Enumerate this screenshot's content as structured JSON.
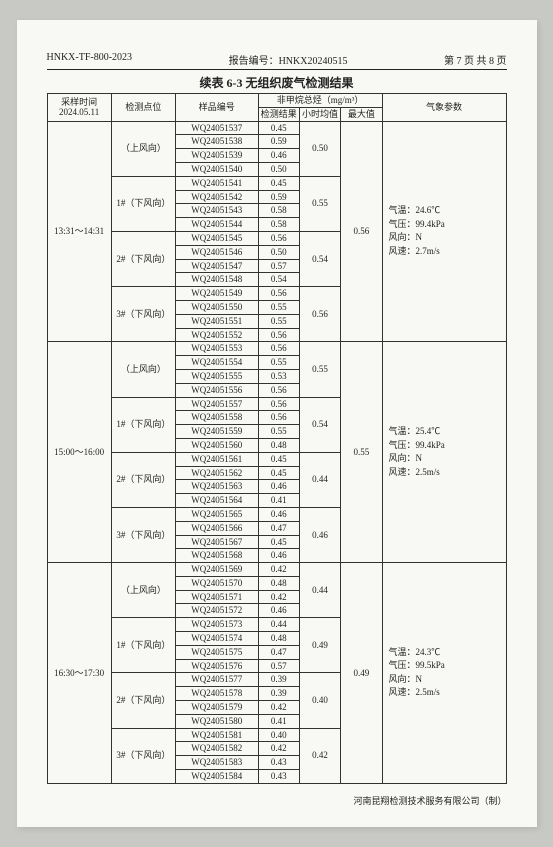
{
  "header": {
    "doc_no": "HNKX-TF-800-2023",
    "report_label": "报告编号：",
    "report_no": "HNKX20240515",
    "page_info": "第 7 页 共 8 页"
  },
  "title": "续表 6-3  无组织废气检测结果",
  "thead": {
    "time_label": "采样时间",
    "time_date": "2024.05.11",
    "loc": "检测点位",
    "sample": "样品编号",
    "pollutant": "非甲烷总烃（mg/m³）",
    "res": "检测结果",
    "hour": "小时均值",
    "max": "最大值",
    "meteo": "气象参数"
  },
  "blocks": [
    {
      "time": "13:31～14:31",
      "max": "0.56",
      "meteo": {
        "t": "气温：24.6℃",
        "p": "气压：99.4kPa",
        "d": "风向：N",
        "s": "风速：2.7m/s"
      },
      "groups": [
        {
          "loc": "（上风向）",
          "hour": "0.50",
          "rows": [
            [
              "WQ24051537",
              "0.45"
            ],
            [
              "WQ24051538",
              "0.59"
            ],
            [
              "WQ24051539",
              "0.46"
            ],
            [
              "WQ24051540",
              "0.50"
            ]
          ]
        },
        {
          "loc": "1#（下风向）",
          "hour": "0.55",
          "rows": [
            [
              "WQ24051541",
              "0.45"
            ],
            [
              "WQ24051542",
              "0.59"
            ],
            [
              "WQ24051543",
              "0.58"
            ],
            [
              "WQ24051544",
              "0.58"
            ]
          ]
        },
        {
          "loc": "2#（下风向）",
          "hour": "0.54",
          "rows": [
            [
              "WQ24051545",
              "0.56"
            ],
            [
              "WQ24051546",
              "0.50"
            ],
            [
              "WQ24051547",
              "0.57"
            ],
            [
              "WQ24051548",
              "0.54"
            ]
          ]
        },
        {
          "loc": "3#（下风向）",
          "hour": "0.56",
          "rows": [
            [
              "WQ24051549",
              "0.56"
            ],
            [
              "WQ24051550",
              "0.55"
            ],
            [
              "WQ24051551",
              "0.55"
            ],
            [
              "WQ24051552",
              "0.56"
            ]
          ]
        }
      ]
    },
    {
      "time": "15:00～16:00",
      "max": "0.55",
      "meteo": {
        "t": "气温：25.4℃",
        "p": "气压：99.4kPa",
        "d": "风向：N",
        "s": "风速：2.5m/s"
      },
      "groups": [
        {
          "loc": "（上风向）",
          "hour": "0.55",
          "rows": [
            [
              "WQ24051553",
              "0.56"
            ],
            [
              "WQ24051554",
              "0.55"
            ],
            [
              "WQ24051555",
              "0.53"
            ],
            [
              "WQ24051556",
              "0.56"
            ]
          ]
        },
        {
          "loc": "1#（下风向）",
          "hour": "0.54",
          "rows": [
            [
              "WQ24051557",
              "0.56"
            ],
            [
              "WQ24051558",
              "0.56"
            ],
            [
              "WQ24051559",
              "0.55"
            ],
            [
              "WQ24051560",
              "0.48"
            ]
          ]
        },
        {
          "loc": "2#（下风向）",
          "hour": "0.44",
          "rows": [
            [
              "WQ24051561",
              "0.45"
            ],
            [
              "WQ24051562",
              "0.45"
            ],
            [
              "WQ24051563",
              "0.46"
            ],
            [
              "WQ24051564",
              "0.41"
            ]
          ]
        },
        {
          "loc": "3#（下风向）",
          "hour": "0.46",
          "rows": [
            [
              "WQ24051565",
              "0.46"
            ],
            [
              "WQ24051566",
              "0.47"
            ],
            [
              "WQ24051567",
              "0.45"
            ],
            [
              "WQ24051568",
              "0.46"
            ]
          ]
        }
      ]
    },
    {
      "time": "16:30～17:30",
      "max": "0.49",
      "meteo": {
        "t": "气温：24.3℃",
        "p": "气压：99.5kPa",
        "d": "风向：N",
        "s": "风速：2.5m/s"
      },
      "groups": [
        {
          "loc": "（上风向）",
          "hour": "0.44",
          "rows": [
            [
              "WQ24051569",
              "0.42"
            ],
            [
              "WQ24051570",
              "0.48"
            ],
            [
              "WQ24051571",
              "0.42"
            ],
            [
              "WQ24051572",
              "0.46"
            ]
          ]
        },
        {
          "loc": "1#（下风向）",
          "hour": "0.49",
          "rows": [
            [
              "WQ24051573",
              "0.44"
            ],
            [
              "WQ24051574",
              "0.48"
            ],
            [
              "WQ24051575",
              "0.47"
            ],
            [
              "WQ24051576",
              "0.57"
            ]
          ]
        },
        {
          "loc": "2#（下风向）",
          "hour": "0.40",
          "rows": [
            [
              "WQ24051577",
              "0.39"
            ],
            [
              "WQ24051578",
              "0.39"
            ],
            [
              "WQ24051579",
              "0.42"
            ],
            [
              "WQ24051580",
              "0.41"
            ]
          ]
        },
        {
          "loc": "3#（下风向）",
          "hour": "0.42",
          "rows": [
            [
              "WQ24051581",
              "0.40"
            ],
            [
              "WQ24051582",
              "0.42"
            ],
            [
              "WQ24051583",
              "0.43"
            ],
            [
              "WQ24051584",
              "0.43"
            ]
          ]
        }
      ]
    }
  ],
  "footer": "河南昆翔检测技术服务有限公司（制）"
}
